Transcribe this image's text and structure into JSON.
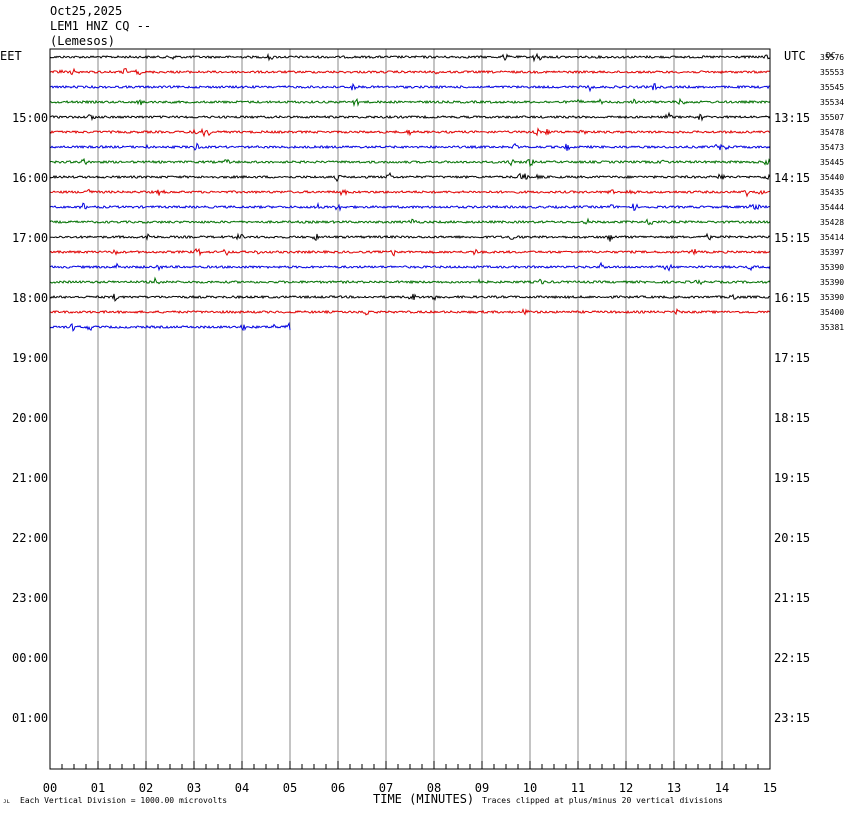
{
  "header": {
    "date": "Oct25,2025",
    "station": "LEM1 HNZ CQ --",
    "location": "(Lemesos)"
  },
  "left_zone": "EET",
  "right_zone": "UTC",
  "dc_label": "DC",
  "xlabel": "TIME (MINUTES)",
  "footer_left": "Each Vertical Division = 1000.00 microvolts",
  "footer_right": "Traces clipped at plus/minus 20 vertical divisions",
  "corner_mark": "ᴊʟ",
  "colors": [
    "#000000",
    "#e00000",
    "#0000e0",
    "#007000"
  ],
  "chart_data": {
    "type": "line",
    "title": "",
    "x_ticks": [
      "00",
      "01",
      "02",
      "03",
      "04",
      "05",
      "06",
      "07",
      "08",
      "09",
      "10",
      "11",
      "12",
      "13",
      "14",
      "15"
    ],
    "xlim": [
      0,
      15
    ],
    "left_hour_labels": [
      "15:00",
      "16:00",
      "17:00",
      "18:00",
      "19:00",
      "20:00",
      "21:00",
      "22:00",
      "23:00",
      "00:00",
      "01:00"
    ],
    "right_hour_labels": [
      "13:15",
      "14:15",
      "15:15",
      "16:15",
      "17:15",
      "18:15",
      "19:15",
      "20:15",
      "21:15",
      "22:15",
      "23:15"
    ],
    "traces": [
      {
        "dc": "35576",
        "color": "#000000",
        "minutes": 15
      },
      {
        "dc": "35553",
        "color": "#e00000",
        "minutes": 15
      },
      {
        "dc": "35545",
        "color": "#0000e0",
        "minutes": 15
      },
      {
        "dc": "35534",
        "color": "#007000",
        "minutes": 15
      },
      {
        "dc": "35507",
        "color": "#000000",
        "minutes": 15
      },
      {
        "dc": "35478",
        "color": "#e00000",
        "minutes": 15
      },
      {
        "dc": "35473",
        "color": "#0000e0",
        "minutes": 15
      },
      {
        "dc": "35445",
        "color": "#007000",
        "minutes": 15
      },
      {
        "dc": "35440",
        "color": "#000000",
        "minutes": 15
      },
      {
        "dc": "35435",
        "color": "#e00000",
        "minutes": 15
      },
      {
        "dc": "35444",
        "color": "#0000e0",
        "minutes": 15
      },
      {
        "dc": "35428",
        "color": "#007000",
        "minutes": 15
      },
      {
        "dc": "35414",
        "color": "#000000",
        "minutes": 15
      },
      {
        "dc": "35397",
        "color": "#e00000",
        "minutes": 15
      },
      {
        "dc": "35390",
        "color": "#0000e0",
        "minutes": 15
      },
      {
        "dc": "35390",
        "color": "#007000",
        "minutes": 15
      },
      {
        "dc": "35390",
        "color": "#000000",
        "minutes": 15
      },
      {
        "dc": "35400",
        "color": "#e00000",
        "minutes": 15
      },
      {
        "dc": "35381",
        "color": "#0000e0",
        "minutes": 5
      }
    ]
  }
}
